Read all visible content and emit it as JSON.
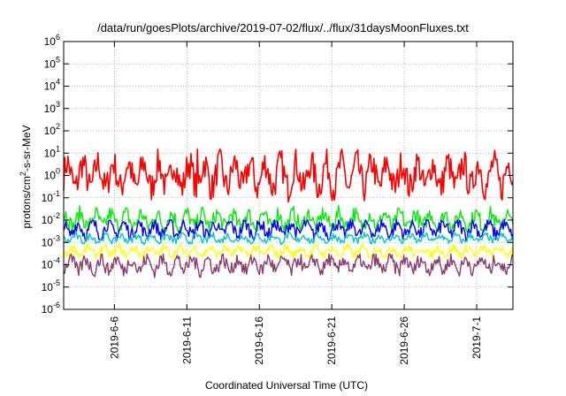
{
  "chart_data": {
    "type": "line",
    "title": "/data/run/goesPlots/archive/2019-07-02/flux/../flux/31daysMoonFluxes.txt",
    "xlabel": "Coordinated Universal Time (UTC)",
    "ylabel_parts": [
      "protons/cm",
      "2",
      "-s-sr-MeV"
    ],
    "y_scale": "log",
    "ylim_exp": [
      -6,
      6
    ],
    "y_tick_exponents": [
      -6,
      -5,
      -4,
      -3,
      -2,
      -1,
      0,
      1,
      2,
      3,
      4,
      5,
      6
    ],
    "y_tick_base": "10",
    "xlim": [
      "2019-06-02T12:00",
      "2019-07-03T12:00"
    ],
    "x_ticks": [
      {
        "date": "2019-06-06",
        "label": "2019-6-6"
      },
      {
        "date": "2019-06-11",
        "label": "2019-6-11"
      },
      {
        "date": "2019-06-16",
        "label": "2019-6-16"
      },
      {
        "date": "2019-06-21",
        "label": "2019-6-21"
      },
      {
        "date": "2019-06-26",
        "label": "2019-6-26"
      },
      {
        "date": "2019-07-01",
        "label": "2019-7-1"
      }
    ],
    "grid": true,
    "series_colors": [
      "#ff0000",
      "#00ee00",
      "#0000ff",
      "#00c8c8",
      "#ffff00",
      "#8b3a6a"
    ],
    "series_approx_levels": [
      {
        "color": "#ff0000",
        "min": 0.05,
        "typical": 1.0,
        "max": 15
      },
      {
        "color": "#00ee00",
        "min": 0.003,
        "typical": 0.01,
        "max": 0.06
      },
      {
        "color": "#0000ff",
        "min": 0.0008,
        "typical": 0.004,
        "max": 0.01
      },
      {
        "color": "#00c8c8",
        "min": 0.0008,
        "typical": 0.0015,
        "max": 0.003
      },
      {
        "color": "#ffff00",
        "min": 0.0002,
        "typical": 0.0004,
        "max": 0.001
      },
      {
        "color": "#8b3a6a",
        "min": 2e-05,
        "typical": 0.0001,
        "max": 0.0003
      }
    ]
  }
}
